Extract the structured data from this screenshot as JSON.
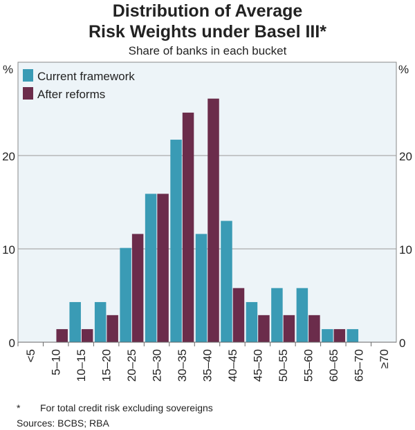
{
  "chart_data": {
    "type": "bar",
    "title": "Distribution of Average Risk Weights under Basel III*",
    "title_lines": [
      "Distribution of Average",
      "Risk Weights under Basel III*"
    ],
    "subtitle": "Share of banks in each bucket",
    "ylabel_left": "%",
    "ylabel_right": "%",
    "ylim": [
      0,
      30
    ],
    "yticks": [
      0,
      10,
      20
    ],
    "categories": [
      "<5",
      "5–10",
      "10–15",
      "15–20",
      "20–25",
      "25–30",
      "30–35",
      "35–40",
      "40–45",
      "45–50",
      "50–55",
      "55–60",
      "60–65",
      "65–70",
      "≥70"
    ],
    "series": [
      {
        "name": "Current framework",
        "color": "#3a9bb5",
        "values": [
          0,
          0,
          4.3,
          4.3,
          10.1,
          15.9,
          21.7,
          11.6,
          13.0,
          4.3,
          5.8,
          5.8,
          1.4,
          1.4,
          0
        ]
      },
      {
        "name": "After reforms",
        "color": "#6b2c4b",
        "values": [
          0,
          1.4,
          1.4,
          2.9,
          11.6,
          15.9,
          24.6,
          26.1,
          5.8,
          2.9,
          2.9,
          2.9,
          1.4,
          0,
          0
        ]
      }
    ],
    "legend": "top-left",
    "grid": true
  },
  "footnote": "For total credit risk excluding sovereigns",
  "footnote_mark": "*",
  "sources": "Sources: BCBS; RBA"
}
